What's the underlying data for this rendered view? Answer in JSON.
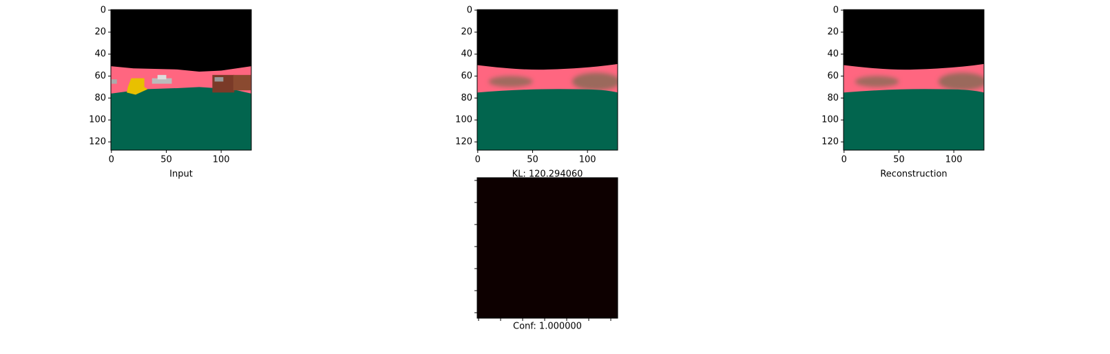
{
  "chart_data": [
    {
      "type": "image",
      "xlabel": "Input",
      "xlim": [
        -0.5,
        127.5
      ],
      "ylim": [
        127.5,
        -0.5
      ],
      "xticks": [
        0,
        50,
        100
      ],
      "yticks": [
        0,
        20,
        40,
        60,
        80,
        100,
        120
      ]
    },
    {
      "type": "image",
      "xlim": [
        -0.5,
        127.5
      ],
      "ylim": [
        127.5,
        -0.5
      ],
      "xticks": [
        0,
        50,
        100
      ],
      "yticks": [
        0,
        20,
        40,
        60,
        80,
        100,
        120
      ]
    },
    {
      "type": "image",
      "xlabel": "Reconstruction",
      "xlim": [
        -0.5,
        127.5
      ],
      "ylim": [
        127.5,
        -0.5
      ],
      "xticks": [
        0,
        50,
        100
      ],
      "yticks": [
        0,
        20,
        40,
        60,
        80,
        100,
        120
      ]
    },
    {
      "type": "image",
      "title": "KL: 120.294060",
      "xlabel": "Conf: 1.000000"
    }
  ]
}
